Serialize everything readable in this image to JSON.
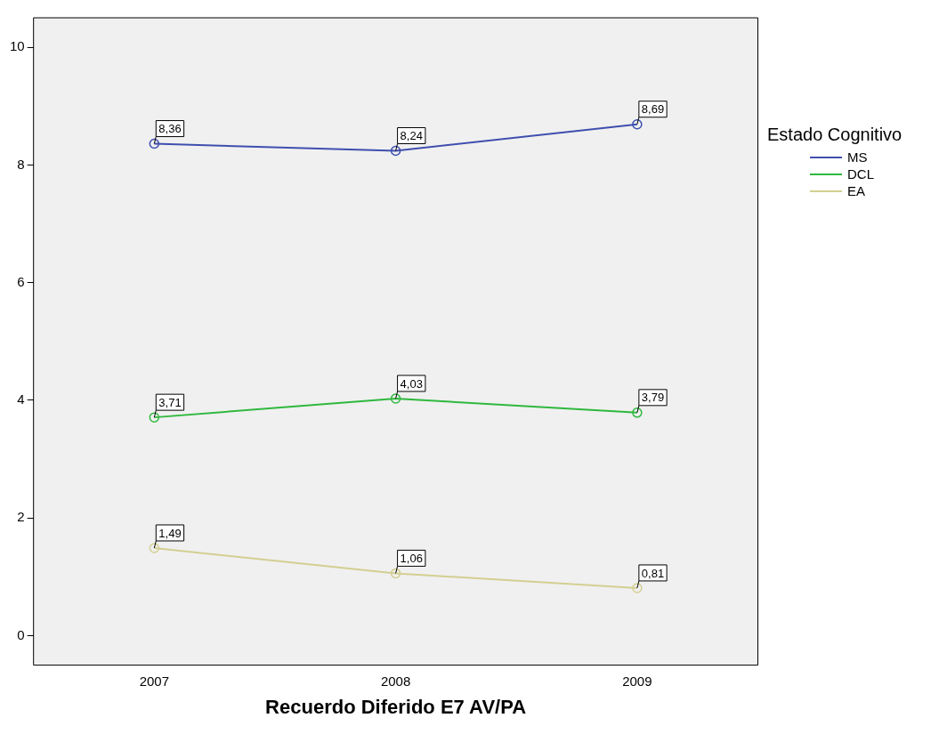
{
  "chart_data": {
    "type": "line",
    "xlabel": "Recuerdo Diferido E7 AV/PA",
    "legend_title": "Estado Cognitivo",
    "categories": [
      "2007",
      "2008",
      "2009"
    ],
    "series": [
      {
        "name": "MS",
        "color": "#3f4fae",
        "values": [
          8.36,
          8.24,
          8.69
        ],
        "value_labels": [
          "8,36",
          "8,24",
          "8,69"
        ]
      },
      {
        "name": "DCL",
        "color": "#2fb83e",
        "values": [
          3.71,
          4.03,
          3.79
        ],
        "value_labels": [
          "3,71",
          "4,03",
          "3,79"
        ]
      },
      {
        "name": "EA",
        "color": "#d3cf92",
        "values": [
          1.49,
          1.06,
          0.81
        ],
        "value_labels": [
          "1,49",
          "1,06",
          "0,81"
        ]
      }
    ],
    "ylim": [
      -0.5,
      10.5
    ],
    "yticks": [
      0,
      2,
      4,
      6,
      8,
      10
    ],
    "grid": false,
    "legend": "top right",
    "marker": "circle",
    "line_style": "solid"
  }
}
